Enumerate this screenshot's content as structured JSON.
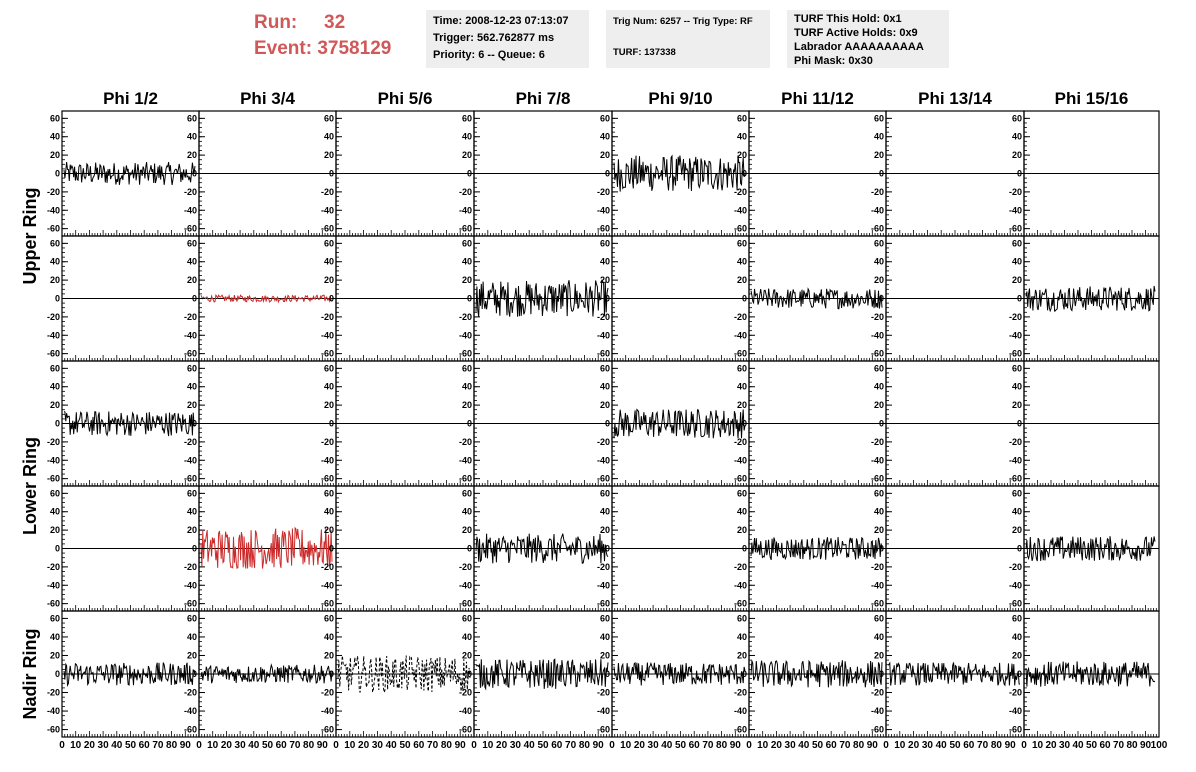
{
  "header": {
    "run_label": "Run:",
    "run_value": "32",
    "event_label": "Event:",
    "event_value": "3758129"
  },
  "info_boxes": {
    "time": "Time: 2008-12-23 07:13:07",
    "trigger": "Trigger: 562.762877 ms",
    "priority": "Priority: 6 -- Queue: 6",
    "trig_num": "Trig Num: 6257 -- Trig Type: RF",
    "turf": "TURF: 137338",
    "turf_hold": "TURF This Hold: 0x1",
    "turf_active": "TURF Active Holds: 0x9",
    "labrador": "Labrador AAAAAAAAAA",
    "phi_mask": "Phi Mask: 0x30"
  },
  "chart_data": {
    "type": "line",
    "columns": [
      "Phi 1/2",
      "Phi 3/4",
      "Phi 5/6",
      "Phi 7/8",
      "Phi 9/10",
      "Phi 11/12",
      "Phi 13/14",
      "Phi 15/16"
    ],
    "ring_labels": [
      "Upper Ring",
      "Lower Ring",
      "Nadir Ring"
    ],
    "y_ticks": [
      "60",
      "40",
      "20",
      "0",
      "-20",
      "-40",
      "-60"
    ],
    "ylim": [
      -68,
      68
    ],
    "xlim": [
      0,
      100
    ],
    "x_ticks": [
      "0",
      "10",
      "20",
      "30",
      "40",
      "50",
      "60",
      "70",
      "80",
      "90",
      "100"
    ],
    "x_tick_values": [
      0,
      10,
      20,
      30,
      40,
      50,
      60,
      70,
      80,
      90,
      100
    ],
    "x_tick_values_last": [
      0,
      10,
      20,
      30,
      40,
      50,
      60,
      70,
      80,
      90,
      100
    ],
    "panels": [
      [
        {
          "amp": 10,
          "color": "#000000"
        },
        {
          "amp": 0,
          "color": "#000000"
        },
        {
          "amp": 0,
          "color": "#2b3fb0"
        },
        {
          "amp": 0,
          "color": "#000000"
        },
        {
          "amp": 16,
          "color": "#000000"
        },
        {
          "amp": 0,
          "color": "#000000"
        },
        {
          "amp": 0,
          "color": "#000000"
        },
        {
          "amp": 0,
          "color": "#000000"
        }
      ],
      [
        {
          "amp": 0,
          "color": "#000000"
        },
        {
          "amp": 3,
          "color": "#cc2a2a"
        },
        {
          "amp": 0,
          "color": "#000000"
        },
        {
          "amp": 16,
          "color": "#000000"
        },
        {
          "amp": 0,
          "color": "#000000"
        },
        {
          "amp": 9,
          "color": "#000000"
        },
        {
          "amp": 0,
          "color": "#000000"
        },
        {
          "amp": 11,
          "color": "#000000"
        }
      ],
      [
        {
          "amp": 11,
          "color": "#000000"
        },
        {
          "amp": 0,
          "color": "#000000"
        },
        {
          "amp": 0,
          "color": "#2a9a2a"
        },
        {
          "amp": 0,
          "color": "#000000"
        },
        {
          "amp": 13,
          "color": "#000000"
        },
        {
          "amp": 0,
          "color": "#000000"
        },
        {
          "amp": 0,
          "color": "#000000"
        },
        {
          "amp": 0,
          "color": "#000000"
        }
      ],
      [
        {
          "amp": 0,
          "color": "#000000"
        },
        {
          "amp": 18,
          "color": "#cc2a2a"
        },
        {
          "amp": 0,
          "color": "#000000"
        },
        {
          "amp": 13,
          "color": "#000000"
        },
        {
          "amp": 0,
          "color": "#000000"
        },
        {
          "amp": 10,
          "color": "#000000"
        },
        {
          "amp": 0,
          "color": "#000000"
        },
        {
          "amp": 11,
          "color": "#000000"
        }
      ],
      [
        {
          "amp": 10,
          "color": "#000000"
        },
        {
          "amp": 8,
          "color": "#000000"
        },
        {
          "amp": 16,
          "color": "#000000",
          "dashed": true
        },
        {
          "amp": 13,
          "color": "#000000"
        },
        {
          "amp": 10,
          "color": "#000000"
        },
        {
          "amp": 12,
          "color": "#000000"
        },
        {
          "amp": 10,
          "color": "#000000"
        },
        {
          "amp": 11,
          "color": "#000000"
        }
      ]
    ]
  }
}
